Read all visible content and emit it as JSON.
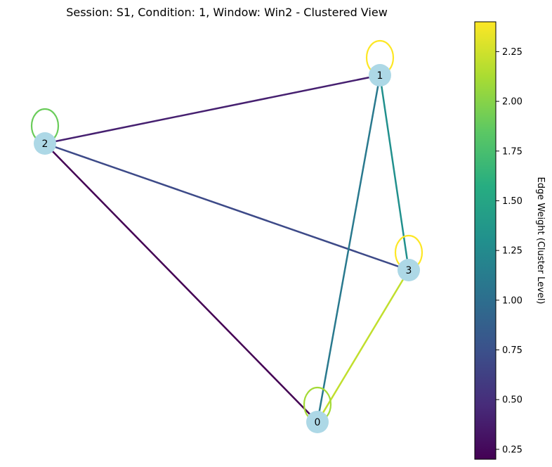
{
  "title": "Session: S1, Condition: 1, Window: Win2 - Clustered View",
  "colorbar": {
    "label": "Edge Weight (Cluster Level)",
    "colormap": "viridis",
    "range": [
      0.2,
      2.4
    ],
    "ticks": [
      "0.25",
      "0.50",
      "0.75",
      "1.00",
      "1.25",
      "1.50",
      "1.75",
      "2.00",
      "2.25"
    ]
  },
  "graph": {
    "node_color": "#add8e6",
    "nodes": [
      {
        "id": "0",
        "label": "0"
      },
      {
        "id": "1",
        "label": "1"
      },
      {
        "id": "2",
        "label": "2"
      },
      {
        "id": "3",
        "label": "3"
      }
    ],
    "edges": [
      {
        "source": "2",
        "target": "0",
        "weight": 0.2
      },
      {
        "source": "2",
        "target": "1",
        "weight": 0.4
      },
      {
        "source": "2",
        "target": "3",
        "weight": 0.7
      },
      {
        "source": "1",
        "target": "0",
        "weight": 1.1
      },
      {
        "source": "1",
        "target": "3",
        "weight": 1.3
      },
      {
        "source": "3",
        "target": "0",
        "weight": 2.2
      },
      {
        "source": "0",
        "target": "0",
        "weight": 2.1
      },
      {
        "source": "1",
        "target": "1",
        "weight": 2.4
      },
      {
        "source": "2",
        "target": "2",
        "weight": 1.9
      },
      {
        "source": "3",
        "target": "3",
        "weight": 2.4
      }
    ]
  }
}
